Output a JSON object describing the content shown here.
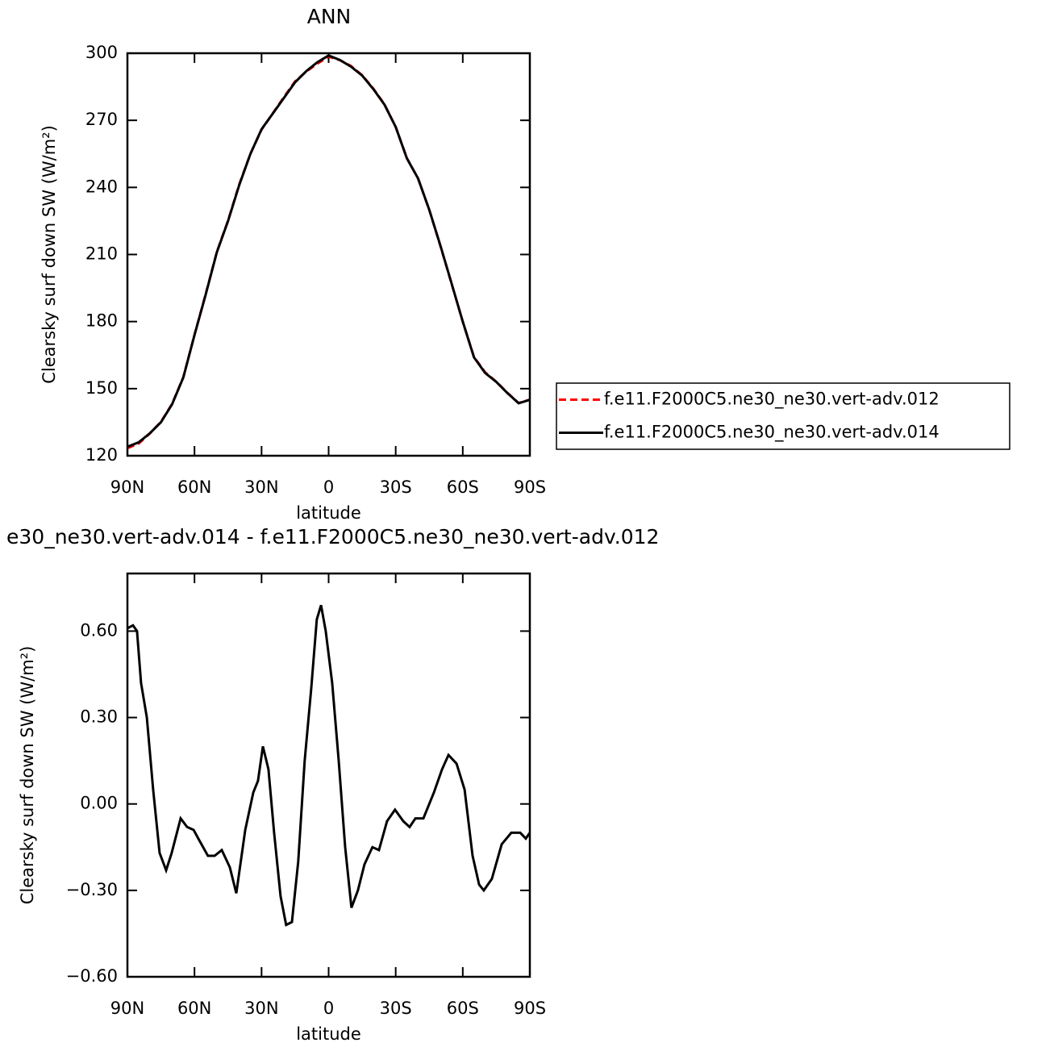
{
  "chart_data": [
    {
      "type": "line",
      "title": "ANN",
      "xlabel": "latitude",
      "ylabel": "Clearsky surf down SW (W/m²)",
      "x": [
        90,
        85,
        80,
        75,
        70,
        65,
        60,
        55,
        50,
        45,
        40,
        35,
        30,
        25,
        20,
        15,
        10,
        5,
        0,
        -5,
        -10,
        -15,
        -20,
        -25,
        -30,
        -35,
        -40,
        -45,
        -50,
        -55,
        -60,
        -65,
        -70,
        -75,
        -80,
        -85,
        -90
      ],
      "series": [
        {
          "name": "f.e11.F2000C5.ne30_ne30.vert-adv.012",
          "color": "#ff0000",
          "dash": true,
          "values": [
            123.4,
            125.4,
            129.9,
            135.2,
            143.2,
            155.1,
            174.1,
            192.2,
            211.2,
            225.2,
            241.3,
            255.0,
            265.8,
            273.1,
            280.4,
            287.4,
            291.8,
            295.4,
            298.5,
            296.9,
            294.3,
            290.2,
            284.2,
            277.1,
            267.0,
            253.1,
            244.0,
            229.9,
            213.8,
            196.9,
            180.0,
            164.2,
            157.3,
            153.1,
            148.1,
            143.6,
            145.1
          ]
        },
        {
          "name": "f.e11.F2000C5.ne30_ne30.vert-adv.014",
          "color": "#000000",
          "dash": false,
          "values": [
            124,
            126,
            130,
            135,
            143,
            155,
            174,
            192,
            211,
            225,
            241,
            255,
            266,
            273,
            280,
            287,
            292,
            296,
            299,
            297,
            294,
            290,
            284,
            277,
            267,
            253,
            244,
            230,
            214,
            197,
            180,
            164,
            157,
            153,
            148,
            143.5,
            145
          ]
        }
      ],
      "xlim": [
        90,
        -90
      ],
      "xticks": [
        {
          "value": 90,
          "label": "90N"
        },
        {
          "value": 60,
          "label": "60N"
        },
        {
          "value": 30,
          "label": "30N"
        },
        0,
        {
          "value": -30,
          "label": "30S"
        },
        {
          "value": -60,
          "label": "60S"
        },
        {
          "value": -90,
          "label": "90S"
        }
      ],
      "ylim": [
        120,
        300
      ],
      "yticks": [
        120,
        150,
        180,
        210,
        240,
        270,
        300
      ]
    },
    {
      "type": "line",
      "title": "e30_ne30.vert-adv.014 - f.e11.F2000C5.ne30_ne30.vert-adv.012",
      "xlabel": "latitude",
      "ylabel": "Clearsky surf down SW (W/m²)",
      "x": [
        90,
        87.5,
        85.7,
        83.9,
        81.3,
        78.5,
        75.6,
        72.7,
        70.2,
        66.2,
        63.3,
        60.4,
        58.3,
        54,
        51,
        47.8,
        44.2,
        41.3,
        37.3,
        33.7,
        31.6,
        29.4,
        26.9,
        24.4,
        21.5,
        19,
        16.4,
        13.6,
        10.7,
        7.8,
        5.3,
        3.4,
        1.3,
        -1.6,
        -4.5,
        -7.4,
        -10.2,
        -13.1,
        -16,
        -19.6,
        -22.5,
        -26.1,
        -29.7,
        -33.4,
        -36.2,
        -38.8,
        -42.4,
        -47.1,
        -50.7,
        -53.6,
        -57.2,
        -60.8,
        -64.4,
        -67.3,
        -69.4,
        -73,
        -77.4,
        -81.7,
        -85.7,
        -88.2,
        -90
      ],
      "series": [
        {
          "color": "#000000",
          "dash": false,
          "values": [
            0.61,
            0.62,
            0.6,
            0.42,
            0.3,
            0.05,
            -0.17,
            -0.23,
            -0.17,
            -0.05,
            -0.08,
            -0.09,
            -0.12,
            -0.18,
            -0.18,
            -0.16,
            -0.22,
            -0.31,
            -0.09,
            0.04,
            0.08,
            0.2,
            0.12,
            -0.1,
            -0.32,
            -0.42,
            -0.41,
            -0.2,
            0.15,
            0.4,
            0.64,
            0.69,
            0.6,
            0.42,
            0.15,
            -0.15,
            -0.36,
            -0.3,
            -0.21,
            -0.15,
            -0.16,
            -0.06,
            -0.02,
            -0.06,
            -0.08,
            -0.05,
            -0.05,
            0.04,
            0.12,
            0.17,
            0.14,
            0.05,
            -0.18,
            -0.28,
            -0.3,
            -0.26,
            -0.14,
            -0.1,
            -0.1,
            -0.12,
            -0.1
          ]
        }
      ],
      "xlim": [
        90,
        -90
      ],
      "xticks": [
        {
          "value": 90,
          "label": "90N"
        },
        {
          "value": 60,
          "label": "60N"
        },
        {
          "value": 30,
          "label": "30N"
        },
        0,
        {
          "value": -30,
          "label": "30S"
        },
        {
          "value": -60,
          "label": "60S"
        },
        {
          "value": -90,
          "label": "90S"
        }
      ],
      "ylim": [
        -0.6,
        0.8
      ],
      "yticks": [
        {
          "value": -0.6,
          "label": "−0.60"
        },
        {
          "value": -0.3,
          "label": "−0.30"
        },
        {
          "value": 0,
          "label": "0.00"
        },
        {
          "value": 0.3,
          "label": "0.30"
        },
        {
          "value": 0.6,
          "label": "0.60"
        }
      ]
    }
  ]
}
